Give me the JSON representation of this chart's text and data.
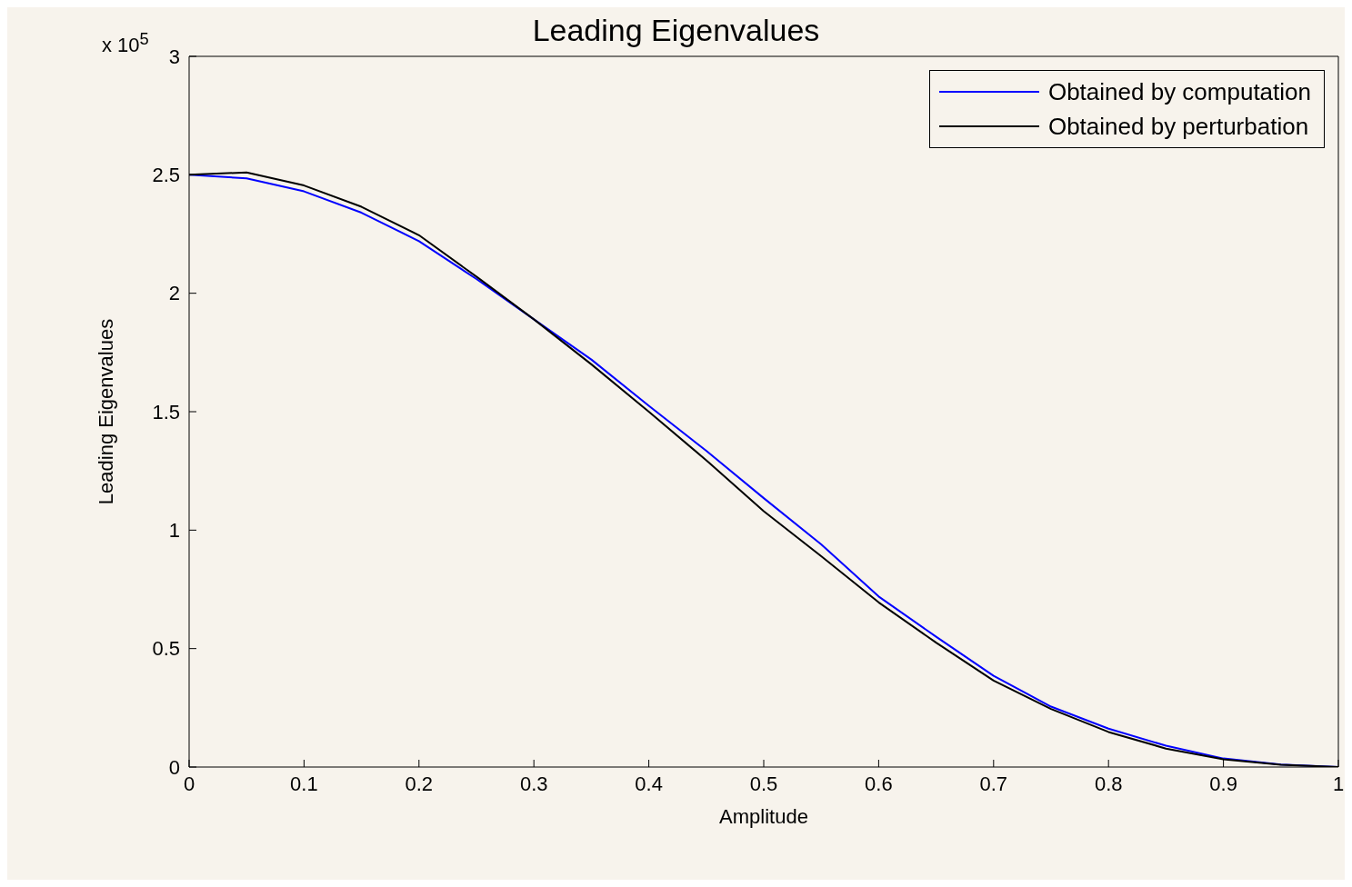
{
  "chart_data": {
    "type": "line",
    "title": "Leading Eigenvalues",
    "xlabel": "Amplitude",
    "ylabel": "Leading Eigenvalues",
    "annotations": [
      "x 10$^{5}$"
    ],
    "x": [
      0,
      0.05,
      0.1,
      0.15,
      0.2,
      0.25,
      0.3,
      0.35,
      0.4,
      0.45,
      0.5,
      0.55,
      0.6,
      0.65,
      0.7,
      0.75,
      0.8,
      0.85,
      0.9,
      0.95,
      1
    ],
    "series": [
      {
        "name": "Obtained by computation",
        "color": "#0000ff",
        "values": [
          2.5,
          2.485,
          2.43,
          2.34,
          2.22,
          2.06,
          1.89,
          1.72,
          1.525,
          1.335,
          1.135,
          0.94,
          0.72,
          0.55,
          0.385,
          0.255,
          0.162,
          0.09,
          0.036,
          0.011,
          0
        ]
      },
      {
        "name": "Obtained by perturbation",
        "color": "#000000",
        "values": [
          2.5,
          2.51,
          2.455,
          2.365,
          2.245,
          2.07,
          1.89,
          1.7,
          1.5,
          1.295,
          1.08,
          0.89,
          0.695,
          0.525,
          0.365,
          0.245,
          0.148,
          0.078,
          0.033,
          0.01,
          0
        ]
      }
    ],
    "xlim": [
      0,
      1
    ],
    "xticks": [
      0,
      0.1,
      0.2,
      0.3,
      0.4,
      0.5,
      0.6,
      0.7,
      0.8,
      0.9,
      1
    ],
    "ylim": [
      0,
      3
    ],
    "yticks": [
      0,
      0.5,
      1,
      1.5,
      2,
      2.5,
      3
    ],
    "grid": false,
    "legend": "top right",
    "marker": "none",
    "line_style": "solid"
  }
}
